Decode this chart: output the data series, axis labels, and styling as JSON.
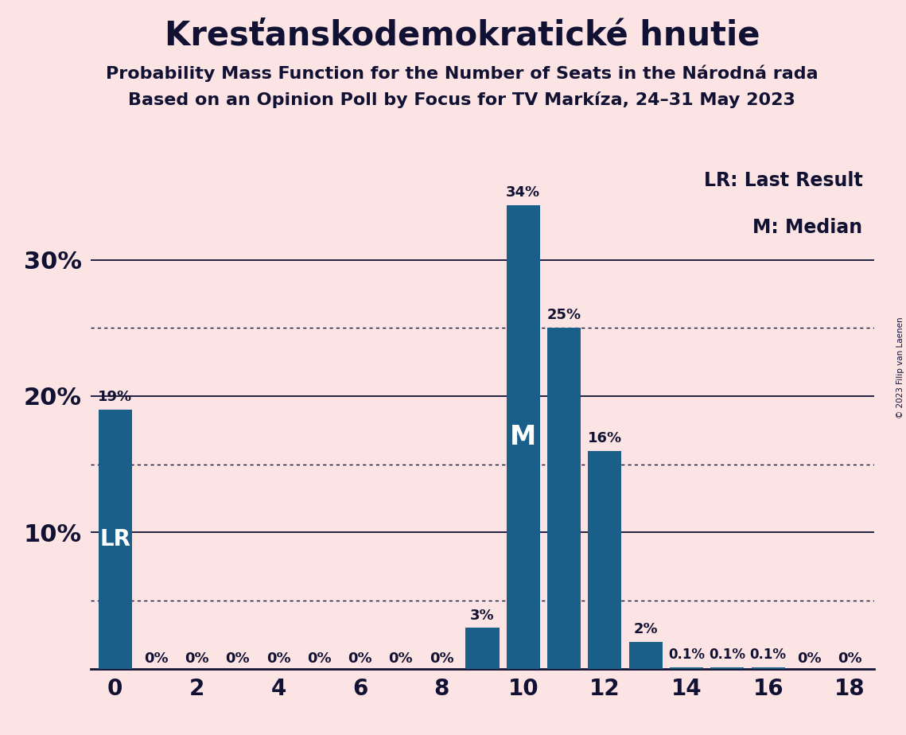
{
  "title": "Kresťanskodemokratické hnutie",
  "subtitle1": "Probability Mass Function for the Number of Seats in the Národná rada",
  "subtitle2": "Based on an Opinion Poll by Focus for TV Markíza, 24–31 May 2023",
  "copyright": "© 2023 Filip van Laenen",
  "seats": [
    0,
    1,
    2,
    3,
    4,
    5,
    6,
    7,
    8,
    9,
    10,
    11,
    12,
    13,
    14,
    15,
    16,
    17,
    18
  ],
  "probabilities": [
    19,
    0,
    0,
    0,
    0,
    0,
    0,
    0,
    0,
    3,
    34,
    25,
    16,
    2,
    0.1,
    0.1,
    0.1,
    0,
    0
  ],
  "bar_labels": [
    "19%",
    "0%",
    "0%",
    "0%",
    "0%",
    "0%",
    "0%",
    "0%",
    "0%",
    "3%",
    "34%",
    "25%",
    "16%",
    "2%",
    "0.1%",
    "0.1%",
    "0.1%",
    "0%",
    "0%"
  ],
  "bar_color": "#1a5f8a",
  "background_color": "#fce4e4",
  "lr_seat": 0,
  "median_seat": 10,
  "lr_label": "LR",
  "median_label": "M",
  "legend_lr": "LR: Last Result",
  "legend_m": "M: Median",
  "xlim": [
    -0.6,
    18.6
  ],
  "ylim": [
    0,
    38
  ],
  "yticks_solid": [
    10,
    20,
    30
  ],
  "yticks_dotted": [
    5,
    15,
    25
  ],
  "xticks": [
    0,
    2,
    4,
    6,
    8,
    10,
    12,
    14,
    16,
    18
  ],
  "title_fontsize": 30,
  "subtitle_fontsize": 16,
  "axis_tick_fontsize": 20,
  "bar_label_fontsize": 13,
  "inside_label_fontsize": 20,
  "ytick_label_fontsize": 22
}
